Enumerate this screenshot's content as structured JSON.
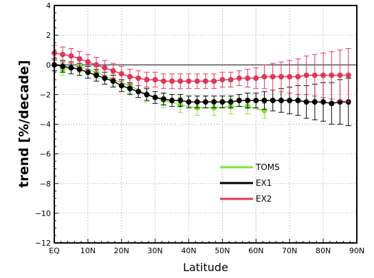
{
  "chart_data": {
    "type": "line",
    "xlabel": "Latitude",
    "ylabel": "trend [%/decade]",
    "xlim": [
      0,
      90
    ],
    "ylim": [
      -12,
      4
    ],
    "x_ticks": [
      0,
      10,
      20,
      30,
      40,
      50,
      60,
      70,
      80,
      90
    ],
    "x_tick_labels": [
      "EQ",
      "10N",
      "20N",
      "30N",
      "40N",
      "50N",
      "60N",
      "70N",
      "80N",
      "90N"
    ],
    "y_ticks": [
      4,
      2,
      0,
      -2,
      -4,
      -6,
      -8,
      -10,
      -12
    ],
    "y_tick_labels": [
      "4",
      "2",
      "0",
      "−2",
      "−4",
      "−6",
      "−8",
      "−10",
      "−12"
    ],
    "grid": "dotted",
    "zero_line": true,
    "legend_position": "lower-right",
    "series": [
      {
        "name": "TOMS",
        "color": "#7ee63a",
        "x": [
          2.5,
          7.5,
          12.5,
          17.5,
          22.5,
          27.5,
          32.5,
          37.5,
          42.5,
          47.5,
          52.5,
          57.5,
          62.5
        ],
        "y": [
          -0.3,
          -0.1,
          -0.5,
          -1.0,
          -1.4,
          -2.0,
          -2.4,
          -2.7,
          -2.9,
          -2.9,
          -2.8,
          -2.8,
          -3.1
        ],
        "err": [
          0.4,
          0.4,
          0.4,
          0.4,
          0.5,
          0.5,
          0.5,
          0.5,
          0.5,
          0.5,
          0.5,
          0.5,
          0.5
        ]
      },
      {
        "name": "EX1",
        "color": "#000000",
        "x": [
          0,
          2.5,
          5,
          7.5,
          10,
          12.5,
          15,
          17.5,
          20,
          22.5,
          25,
          27.5,
          30,
          32.5,
          35,
          37.5,
          40,
          42.5,
          45,
          47.5,
          50,
          52.5,
          55,
          57.5,
          60,
          62.5,
          65,
          67.5,
          70,
          72.5,
          75,
          77.5,
          80,
          82.5,
          85,
          87.5
        ],
        "y": [
          0.0,
          -0.1,
          -0.2,
          -0.3,
          -0.5,
          -0.7,
          -0.9,
          -1.1,
          -1.4,
          -1.6,
          -1.8,
          -2.0,
          -2.2,
          -2.3,
          -2.4,
          -2.4,
          -2.5,
          -2.5,
          -2.5,
          -2.5,
          -2.5,
          -2.5,
          -2.4,
          -2.4,
          -2.4,
          -2.4,
          -2.4,
          -2.4,
          -2.4,
          -2.4,
          -2.5,
          -2.5,
          -2.5,
          -2.6,
          -2.5,
          -2.5
        ],
        "err": [
          0.4,
          0.4,
          0.4,
          0.4,
          0.4,
          0.4,
          0.4,
          0.4,
          0.4,
          0.4,
          0.4,
          0.4,
          0.4,
          0.4,
          0.4,
          0.4,
          0.4,
          0.4,
          0.4,
          0.4,
          0.4,
          0.4,
          0.4,
          0.5,
          0.5,
          0.6,
          0.7,
          0.8,
          0.9,
          1.0,
          1.1,
          1.2,
          1.3,
          1.4,
          1.5,
          1.6
        ]
      },
      {
        "name": "EX2",
        "color": "#e0365a",
        "x": [
          0,
          2.5,
          5,
          7.5,
          10,
          12.5,
          15,
          17.5,
          20,
          22.5,
          25,
          27.5,
          30,
          32.5,
          35,
          37.5,
          40,
          42.5,
          45,
          47.5,
          50,
          52.5,
          55,
          57.5,
          60,
          62.5,
          65,
          67.5,
          70,
          72.5,
          75,
          77.5,
          80,
          82.5,
          85,
          87.5
        ],
        "y": [
          0.8,
          0.7,
          0.6,
          0.4,
          0.2,
          0.0,
          -0.2,
          -0.4,
          -0.6,
          -0.8,
          -0.9,
          -1.0,
          -1.0,
          -1.1,
          -1.1,
          -1.1,
          -1.1,
          -1.1,
          -1.1,
          -1.1,
          -1.0,
          -1.0,
          -0.9,
          -0.9,
          -0.9,
          -0.8,
          -0.8,
          -0.8,
          -0.8,
          -0.8,
          -0.7,
          -0.7,
          -0.7,
          -0.7,
          -0.7,
          -0.7
        ],
        "err": [
          0.5,
          0.5,
          0.5,
          0.5,
          0.5,
          0.5,
          0.5,
          0.5,
          0.5,
          0.5,
          0.5,
          0.5,
          0.5,
          0.5,
          0.5,
          0.5,
          0.5,
          0.5,
          0.5,
          0.5,
          0.5,
          0.5,
          0.5,
          0.6,
          0.7,
          0.8,
          0.9,
          1.0,
          1.1,
          1.2,
          1.3,
          1.4,
          1.5,
          1.6,
          1.7,
          1.8
        ]
      }
    ]
  }
}
